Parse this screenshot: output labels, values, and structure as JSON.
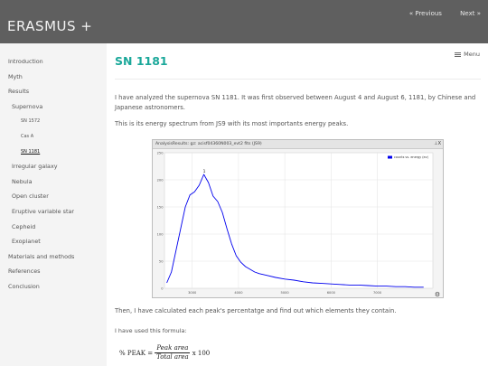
{
  "header": {
    "brand": "ERASMUS +",
    "prev": "« Previous",
    "next": "Next »"
  },
  "menu_label": "Menu",
  "sidebar": {
    "items": [
      {
        "label": "Introduction",
        "level": 1
      },
      {
        "label": "Myth",
        "level": 1
      },
      {
        "label": "Results",
        "level": 1
      },
      {
        "label": "Supernova",
        "level": 2
      },
      {
        "label": "SN 1572",
        "level": 3
      },
      {
        "label": "Cas A",
        "level": 3
      },
      {
        "label": "SN 1181",
        "level": 3,
        "active": true
      },
      {
        "label": "Irregular galaxy",
        "level": 2
      },
      {
        "label": "Nebula",
        "level": 2
      },
      {
        "label": "Open cluster",
        "level": 2
      },
      {
        "label": "Eruptive variable star",
        "level": 2
      },
      {
        "label": "Cepheid",
        "level": 2
      },
      {
        "label": "Exoplanet",
        "level": 2
      },
      {
        "label": "Materials and methods",
        "level": 1
      },
      {
        "label": "References",
        "level": 1
      },
      {
        "label": "Conclusion",
        "level": 1
      }
    ]
  },
  "main": {
    "title": "SN 1181",
    "intro": "I have analyzed the supernova SN 1181. It was first observed between August 4 and August 6, 1181, by Chinese and Japanese astronomers.",
    "spectrum_text": "This is its energy spectrum from JS9 with its most importants energy peaks.",
    "after_text": "Then, I have calculated each peak's percentatge and find out which elements they contain.",
    "formula_intro": "I have used this formula:",
    "formula": {
      "lhs": "% PEAK =",
      "numerator": "Peak area",
      "denominator": "Total area",
      "tail": "x 100"
    }
  },
  "figure": {
    "title": "AnalysisResults: gz: acisf04360N003_evt2 fits (JS9)",
    "controls": "⊥X",
    "gear_glyph": "⚙"
  },
  "chart_data": {
    "type": "line",
    "title": "",
    "legend": {
      "label": "counts vs. energy (ev)",
      "placement": "top-right"
    },
    "xlim": [
      2400,
      8200
    ],
    "ylim": [
      0,
      250
    ],
    "xticks": [
      3000,
      4000,
      5000,
      6000,
      7000
    ],
    "yticks": [
      0,
      50,
      100,
      150,
      200,
      250
    ],
    "grid": true,
    "color": "#0000ee",
    "annotations": [
      {
        "text": "1",
        "x": 3260,
        "y": 210
      }
    ],
    "series": [
      {
        "x": [
          2450,
          2550,
          2650,
          2750,
          2850,
          2950,
          3050,
          3150,
          3250,
          3350,
          3450,
          3550,
          3650,
          3750,
          3850,
          3950,
          4050,
          4150,
          4250,
          4350,
          4450,
          4600,
          4800,
          5000,
          5200,
          5400,
          5600,
          5800,
          6000,
          6200,
          6400,
          6600,
          6800,
          7000,
          7200,
          7400,
          7600,
          7800,
          8000
        ],
        "y": [
          10,
          30,
          70,
          110,
          150,
          172,
          178,
          190,
          210,
          195,
          170,
          160,
          140,
          110,
          82,
          60,
          48,
          40,
          35,
          30,
          27,
          24,
          20,
          17,
          15,
          12,
          10,
          9,
          8,
          7,
          6,
          6,
          5,
          4,
          4,
          3,
          3,
          2,
          2
        ]
      }
    ]
  }
}
